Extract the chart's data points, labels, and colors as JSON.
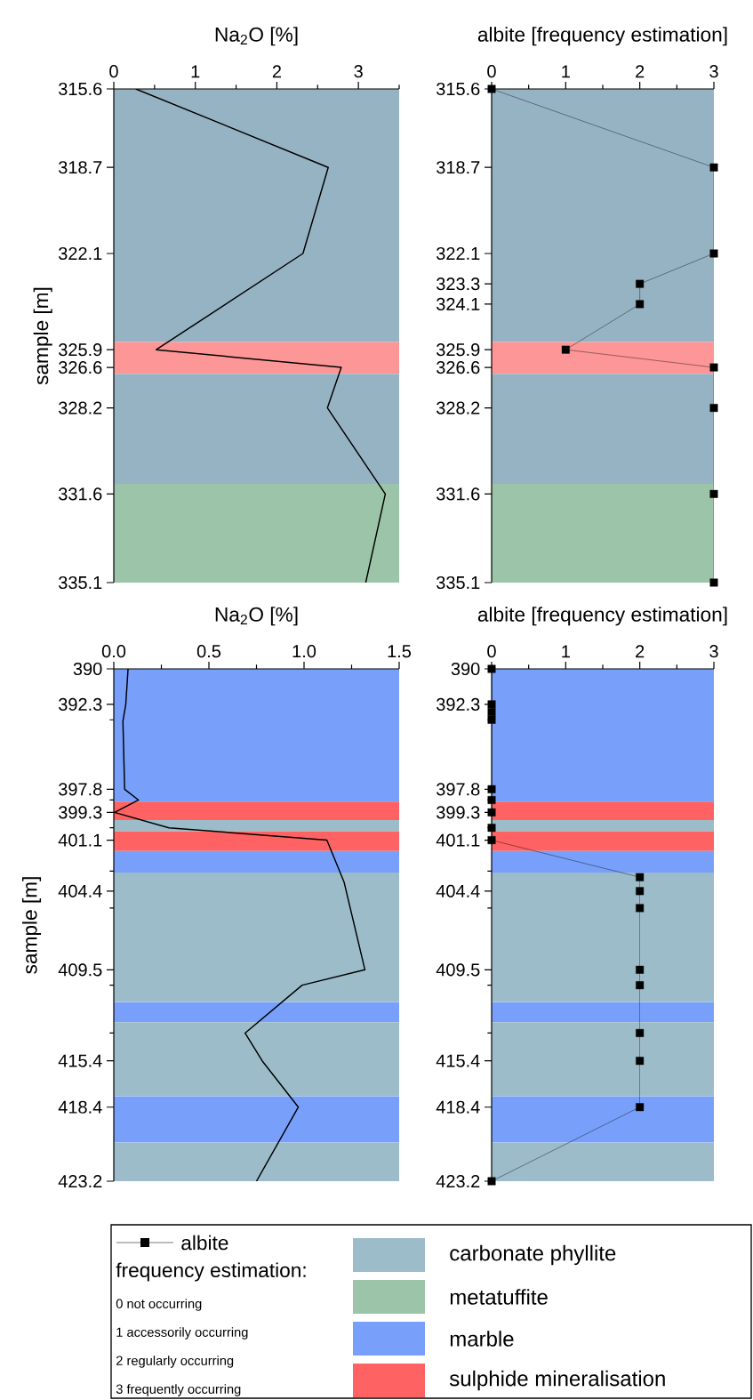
{
  "chart_data": [
    {
      "type": "line",
      "xlabel": "Na$_{2}$O [%]",
      "ylabel": "sample [m]",
      "xlim": [
        0,
        3.5
      ],
      "ylim": [
        335.1,
        315.6
      ],
      "xticks": [
        0,
        {
          "value": 0.5,
          "label": null
        },
        1,
        {
          "value": 1.5,
          "label": null
        },
        2,
        {
          "value": 2.5,
          "label": null
        },
        3,
        {
          "value": 3.5,
          "label": null
        }
      ],
      "yticks": [
        315.6,
        318.7,
        322.1,
        325.9,
        326.6,
        328.2,
        331.6,
        335.1
      ],
      "series": [
        {
          "color": "#000000",
          "x": [
            0.27,
            2.63,
            2.32,
            0.52,
            2.79,
            2.62,
            3.33,
            3.09
          ],
          "values": [
            315.6,
            318.7,
            322.1,
            325.9,
            326.6,
            328.2,
            331.6,
            335.1
          ]
        }
      ],
      "bands": [
        {
          "axis": "y",
          "from": 315.6,
          "to": 325.6,
          "color": "#96b3c4"
        },
        {
          "axis": "y",
          "from": 325.6,
          "to": 326.85,
          "color": "#fd9696"
        },
        {
          "axis": "y",
          "from": 326.85,
          "to": 331.2,
          "color": "#96b3c4"
        },
        {
          "axis": "y",
          "from": 331.2,
          "to": 335.1,
          "color": "#9bc4a8"
        }
      ]
    },
    {
      "type": "line",
      "xlabel": "albite [frequency estimation]",
      "xlim": [
        0,
        3
      ],
      "ylim": [
        335.1,
        315.6
      ],
      "marker": "square",
      "xticks": [
        0,
        {
          "value": 0.5,
          "label": null
        },
        1,
        {
          "value": 1.5,
          "label": null
        },
        2,
        {
          "value": 2.5,
          "label": null
        },
        3
      ],
      "yticks": [
        315.6,
        318.7,
        322.1,
        323.3,
        324.1,
        325.9,
        326.6,
        328.2,
        331.6,
        335.1
      ],
      "series": [
        {
          "color": "#000000",
          "x": [
            0,
            3,
            3,
            2,
            2,
            1,
            3,
            3,
            3,
            3
          ],
          "values": [
            315.6,
            318.7,
            322.1,
            323.3,
            324.1,
            325.9,
            326.6,
            328.2,
            331.6,
            335.1
          ]
        }
      ],
      "bands": [
        {
          "axis": "y",
          "from": 315.6,
          "to": 325.6,
          "color": "#96b3c4"
        },
        {
          "axis": "y",
          "from": 325.6,
          "to": 326.85,
          "color": "#fd9696"
        },
        {
          "axis": "y",
          "from": 326.85,
          "to": 331.2,
          "color": "#96b3c4"
        },
        {
          "axis": "y",
          "from": 331.2,
          "to": 335.1,
          "color": "#9bc4a8"
        }
      ]
    },
    {
      "type": "line",
      "xlabel": "Na$_{2}$O [%]",
      "ylabel": "sample [m]",
      "xlim": [
        0,
        1.5
      ],
      "ylim": [
        423.2,
        390
      ],
      "xticks": [
        {
          "value": 0,
          "label": "0.0"
        },
        {
          "value": 0.25,
          "label": null
        },
        0.5,
        {
          "value": 0.75,
          "label": null
        },
        {
          "value": 1,
          "label": "1.0"
        },
        {
          "value": 1.25,
          "label": null
        },
        1.5
      ],
      "yticks": [
        390,
        392.3,
        {
          "value": 393.3,
          "label": null
        },
        397.8,
        {
          "value": 398.5,
          "label": null
        },
        399.3,
        {
          "value": 400.3,
          "label": null
        },
        401.1,
        {
          "value": 403.1,
          "label": null
        },
        404.4,
        {
          "value": 405.5,
          "label": null
        },
        409.5,
        {
          "value": 410.5,
          "label": null
        },
        {
          "value": 413.6,
          "label": null
        },
        415.4,
        418.4,
        423.2
      ],
      "series": [
        {
          "color": "#000000",
          "x": [
            0.075,
            0.063,
            0.048,
            0.057,
            0.13,
            0.004,
            0.29,
            1.12,
            1.2,
            1.21,
            1.32,
            0.99,
            0.69,
            0.78,
            0.97,
            0.75
          ],
          "values": [
            390,
            392.3,
            393.4,
            397.8,
            398.5,
            399.3,
            400.3,
            401.1,
            403.5,
            403.8,
            409.5,
            410.5,
            413.6,
            415.4,
            418.4,
            423.2
          ]
        }
      ],
      "bands": [
        {
          "axis": "y",
          "from": 390,
          "to": 398.6,
          "color": "#78a0fb"
        },
        {
          "axis": "y",
          "from": 398.6,
          "to": 399.8,
          "color": "#fe6262"
        },
        {
          "axis": "y",
          "from": 399.8,
          "to": 400.5,
          "color": "#9bbcc8"
        },
        {
          "axis": "y",
          "from": 400.5,
          "to": 401.8,
          "color": "#fe6262"
        },
        {
          "axis": "y",
          "from": 401.8,
          "to": 403.2,
          "color": "#78a0fb"
        },
        {
          "axis": "y",
          "from": 403.2,
          "to": 411.6,
          "color": "#9bbcc8"
        },
        {
          "axis": "y",
          "from": 411.6,
          "to": 412.9,
          "color": "#78a0fb"
        },
        {
          "axis": "y",
          "from": 412.9,
          "to": 417.7,
          "color": "#9bbcc8"
        },
        {
          "axis": "y",
          "from": 417.7,
          "to": 420.7,
          "color": "#78a0fb"
        },
        {
          "axis": "y",
          "from": 420.7,
          "to": 423.2,
          "color": "#9bbcc8"
        }
      ]
    },
    {
      "type": "line",
      "xlabel": "albite [frequency estimation]",
      "xlim": [
        0,
        3
      ],
      "ylim": [
        423.2,
        390
      ],
      "marker": "square",
      "legend": "bottom",
      "xticks": [
        0,
        {
          "value": 0.5,
          "label": null
        },
        1,
        {
          "value": 1.5,
          "label": null
        },
        2,
        {
          "value": 2.5,
          "label": null
        },
        3
      ],
      "yticks": [
        390,
        392.3,
        {
          "value": 393.3,
          "label": null
        },
        397.8,
        {
          "value": 398.5,
          "label": null
        },
        399.3,
        {
          "value": 400.3,
          "label": null
        },
        401.1,
        {
          "value": 403.1,
          "label": null
        },
        404.4,
        {
          "value": 405.5,
          "label": null
        },
        409.5,
        {
          "value": 410.5,
          "label": null
        },
        {
          "value": 413.6,
          "label": null
        },
        415.4,
        418.4,
        423.2
      ],
      "series": [
        {
          "name": "albite",
          "color": "#000000",
          "x": [
            0,
            0,
            0,
            0,
            0,
            0,
            0,
            0,
            0,
            2,
            2,
            2,
            2,
            2,
            2,
            2,
            2,
            0
          ],
          "values": [
            390,
            392.3,
            392.8,
            393.3,
            397.8,
            398.5,
            399.3,
            400.3,
            401.1,
            403.5,
            404.4,
            405.5,
            409.5,
            410.5,
            413.6,
            415.4,
            418.4,
            423.2
          ]
        }
      ],
      "bands": [
        {
          "axis": "y",
          "from": 390,
          "to": 398.6,
          "color": "#78a0fb"
        },
        {
          "axis": "y",
          "from": 398.6,
          "to": 399.8,
          "color": "#fe6262"
        },
        {
          "axis": "y",
          "from": 399.8,
          "to": 400.5,
          "color": "#9bbcc8"
        },
        {
          "axis": "y",
          "from": 400.5,
          "to": 401.8,
          "color": "#fe6262"
        },
        {
          "axis": "y",
          "from": 401.8,
          "to": 403.2,
          "color": "#78a0fb"
        },
        {
          "axis": "y",
          "from": 403.2,
          "to": 411.6,
          "color": "#9bbcc8"
        },
        {
          "axis": "y",
          "from": 411.6,
          "to": 412.9,
          "color": "#78a0fb"
        },
        {
          "axis": "y",
          "from": 412.9,
          "to": 417.7,
          "color": "#9bbcc8"
        },
        {
          "axis": "y",
          "from": 417.7,
          "to": 420.7,
          "color": "#78a0fb"
        },
        {
          "axis": "y",
          "from": 420.7,
          "to": 423.2,
          "color": "#9bbcc8"
        }
      ]
    },
    {
      "type": "other",
      "annotations": [
        "frequency estimation:",
        "0 not occurring",
        "1 accessorily occurring",
        "2 regularly occurring",
        "3 frequently occurring"
      ],
      "categories": [
        "carbonate phyllite",
        "metatuffite",
        "marble",
        "sulphide mineralisation"
      ],
      "colors": [
        "#9bbcc8",
        "#9bc4a8",
        "#78a0fb",
        "#fe6262"
      ]
    }
  ]
}
